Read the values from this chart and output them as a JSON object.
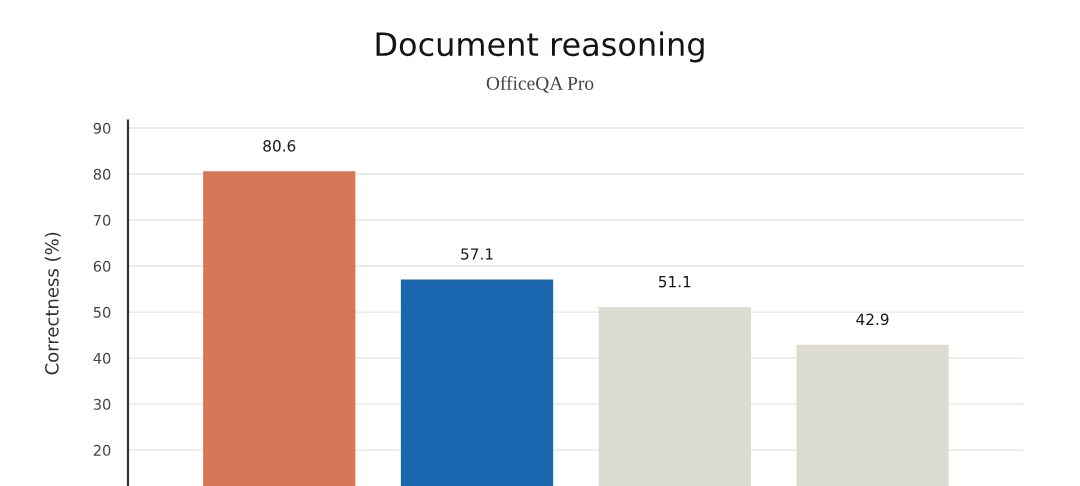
{
  "chart_data": {
    "type": "bar",
    "title": "Document reasoning",
    "subtitle": "OfficeQA Pro",
    "ylabel": "Correctness (%)",
    "categories": [
      null,
      null,
      null,
      null
    ],
    "values": [
      80.6,
      57.1,
      51.1,
      42.9
    ],
    "colors": [
      "#d77757",
      "#1a67b0",
      "#dddcd2",
      "#dddcd2"
    ],
    "ylim": [
      12.2,
      91.6
    ],
    "yticks": [
      20,
      30,
      40,
      50,
      60,
      70,
      80,
      90
    ],
    "grid": "y",
    "data_labels": true,
    "tick_labels": "y",
    "legend": false
  }
}
